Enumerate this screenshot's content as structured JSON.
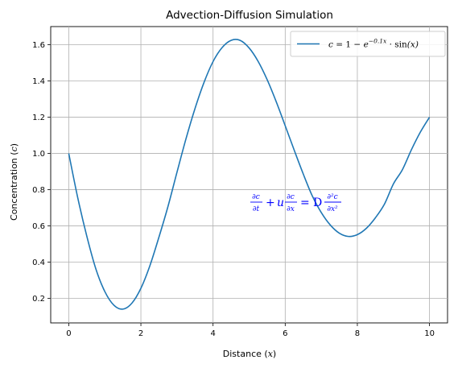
{
  "chart_data": {
    "type": "line",
    "title": "Advection-Diffusion Simulation",
    "xlabel": "Distance",
    "xlabel_var": "x",
    "ylabel": "Concentration",
    "ylabel_var": "c",
    "xlim": [
      -0.5,
      10.5
    ],
    "ylim": [
      0.065,
      1.7
    ],
    "xticks": [
      0,
      2,
      4,
      6,
      8,
      10
    ],
    "xtick_labels": [
      "0",
      "2",
      "4",
      "6",
      "8",
      "10"
    ],
    "yticks": [
      0.2,
      0.4,
      0.6,
      0.8,
      1.0,
      1.2,
      1.4,
      1.6
    ],
    "ytick_labels": [
      "0.2",
      "0.4",
      "0.6",
      "0.8",
      "1.0",
      "1.2",
      "1.4",
      "1.6"
    ],
    "grid": true,
    "legend_position": "top-right",
    "series": [
      {
        "name": "c = 1 − e^(−0.1x) · sin(x)",
        "color": "#1f77b4",
        "x": [
          0,
          0.25,
          0.5,
          0.75,
          1.0,
          1.25,
          1.5,
          1.75,
          2.0,
          2.25,
          2.5,
          2.75,
          3.0,
          3.25,
          3.5,
          3.75,
          4.0,
          4.25,
          4.5,
          4.75,
          5.0,
          5.25,
          5.5,
          5.75,
          6.0,
          6.25,
          6.5,
          6.75,
          7.0,
          7.25,
          7.5,
          7.75,
          8.0,
          8.25,
          8.5,
          8.75,
          9.0,
          9.25,
          9.5,
          9.75,
          10.0
        ],
        "y": [
          1.0,
          0.755,
          0.544,
          0.364,
          0.238,
          0.163,
          0.141,
          0.174,
          0.256,
          0.381,
          0.538,
          0.707,
          0.896,
          1.081,
          1.248,
          1.392,
          1.507,
          1.584,
          1.624,
          1.624,
          1.582,
          1.508,
          1.407,
          1.286,
          1.153,
          1.018,
          0.887,
          0.766,
          0.674,
          0.605,
          0.56,
          0.542,
          0.552,
          0.587,
          0.645,
          0.72,
          0.832,
          0.911,
          1.021,
          1.119,
          1.2
        ]
      }
    ],
    "annotations": [
      {
        "text": "∂c/∂t + u ∂c/∂x = D ∂²c/∂x²",
        "x": 6.2,
        "y": 0.72,
        "color": "#0000ff"
      }
    ]
  },
  "text": {
    "title": "Advection-Diffusion Simulation",
    "xlabel_word": "Distance",
    "xlabel_var": "x",
    "ylabel_word": "Concentration",
    "ylabel_var": "c",
    "legend_lhs": "c",
    "legend_eq": "=",
    "legend_one": "1",
    "legend_minus": "−",
    "legend_e": "e",
    "legend_exp": "−0.1x",
    "legend_dot": "·",
    "legend_sin": "sin",
    "legend_arg": "(x)",
    "eq_dc": "∂c",
    "eq_dt": "∂t",
    "eq_plus": "+",
    "eq_u": "u",
    "eq_dx": "∂x",
    "eq_equals": "=",
    "eq_D": "D",
    "eq_d2c": "∂²c",
    "eq_dx2": "∂x²"
  }
}
